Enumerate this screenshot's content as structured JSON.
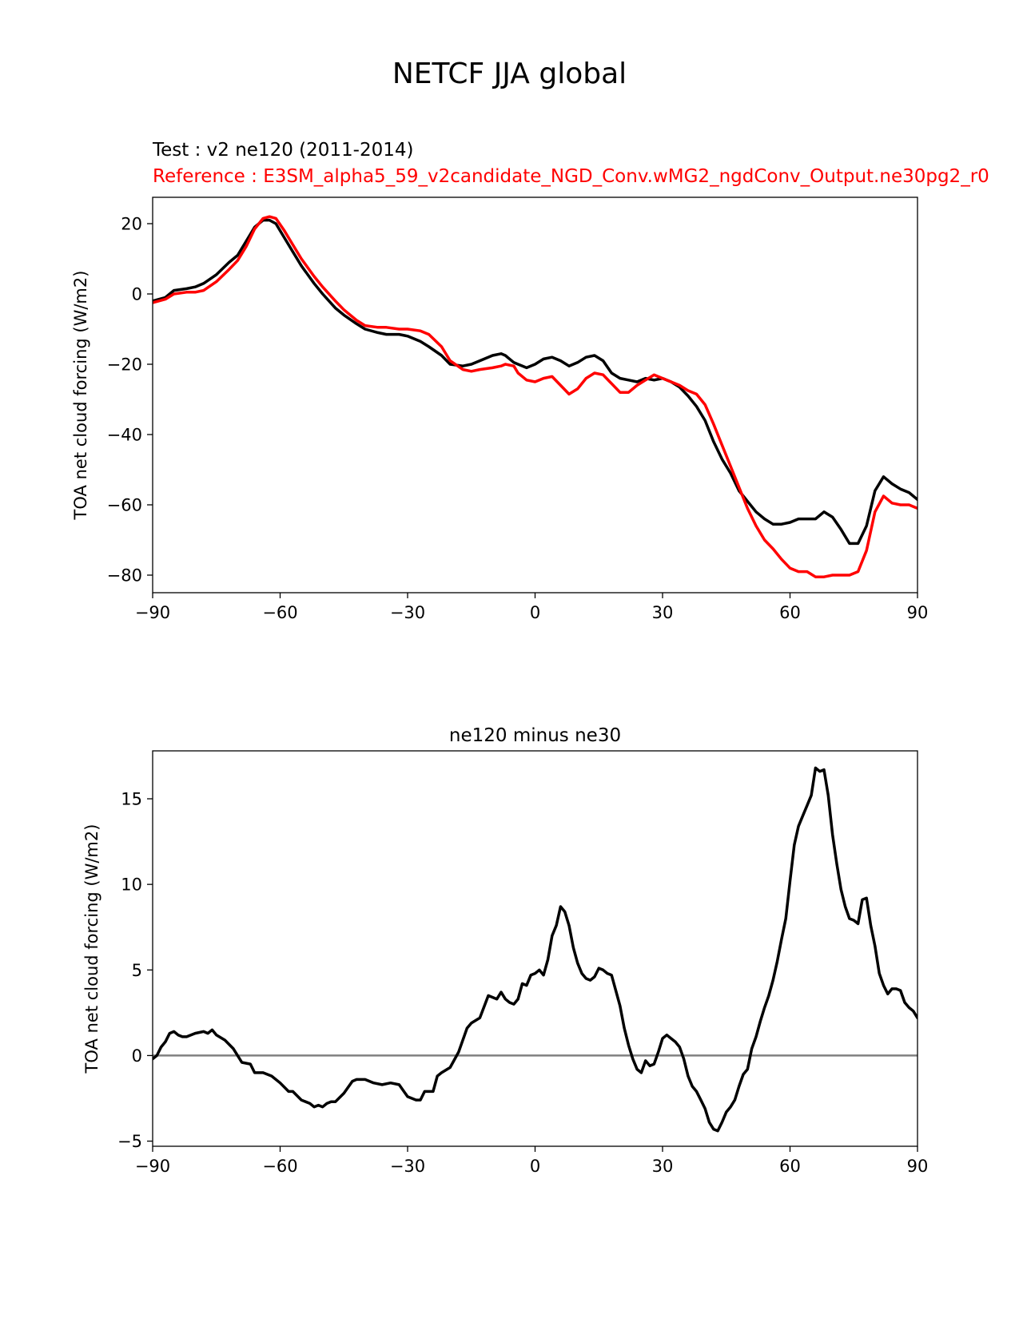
{
  "figure": {
    "suptitle": "NETCF JJA global",
    "test_title": "Test : v2 ne120 (2011-2014)",
    "reference_title": "Reference : E3SM_alpha5_59_v2candidate_NGD_Conv.wMG2_ngdConv_Output.ne30pg2_r0",
    "colors": {
      "test": "#000000",
      "reference": "#ff0000",
      "zero_line": "#808080"
    }
  },
  "chart_data": [
    {
      "type": "line",
      "title": "",
      "xlabel": "",
      "ylabel": "TOA net cloud forcing (W/m2)",
      "xlim": [
        -90,
        90
      ],
      "ylim": [
        -85,
        27.5
      ],
      "xticks": [
        -90,
        -60,
        -30,
        0,
        30,
        60,
        90
      ],
      "xtick_labels": [
        "−90",
        "−60",
        "−30",
        "0",
        "30",
        "60",
        "90"
      ],
      "yticks": [
        -80,
        -60,
        -40,
        -20,
        0,
        20
      ],
      "ytick_labels": [
        "−80",
        "−60",
        "−40",
        "−20",
        "0",
        "20"
      ],
      "x": [
        -90,
        -87,
        -85,
        -82,
        -80,
        -78,
        -75,
        -72,
        -70,
        -68,
        -66,
        -64,
        -62.5,
        -61,
        -59,
        -57,
        -55,
        -52,
        -50,
        -47,
        -45,
        -42,
        -40,
        -37,
        -35,
        -32,
        -30,
        -27,
        -25,
        -22,
        -20,
        -17,
        -15,
        -13,
        -10,
        -8,
        -7,
        -5,
        -4,
        -2,
        0,
        2,
        4,
        6,
        8,
        10,
        12,
        14,
        16,
        18,
        20,
        22,
        24,
        26,
        28,
        30,
        32,
        34,
        36,
        38,
        40,
        42,
        44,
        46,
        48,
        50,
        52,
        54,
        56,
        58,
        60,
        62,
        64,
        66,
        68,
        70,
        72,
        74,
        76,
        78,
        80,
        82,
        84,
        86,
        88,
        90
      ],
      "series": [
        {
          "name": "Test",
          "color": "#000000",
          "values": [
            -2,
            -1,
            1,
            1.5,
            2,
            3,
            5.5,
            9,
            11,
            15,
            19,
            21,
            21,
            20,
            16,
            12,
            8,
            3,
            0,
            -4,
            -6,
            -8.5,
            -10,
            -11,
            -11.5,
            -11.5,
            -12,
            -13.5,
            -15,
            -17.5,
            -20,
            -20.5,
            -20,
            -19,
            -17.5,
            -17,
            -17.5,
            -19.5,
            -20,
            -21,
            -20,
            -18.5,
            -18,
            -19,
            -20.5,
            -19.5,
            -18,
            -17.5,
            -19,
            -22.5,
            -24,
            -24.5,
            -25,
            -24,
            -24.5,
            -24,
            -25,
            -26.5,
            -29,
            -32,
            -36,
            -42,
            -47,
            -51,
            -56,
            -59,
            -62,
            -64,
            -65.5,
            -65.5,
            -65,
            -64,
            -64,
            -64,
            -62,
            -63.5,
            -67,
            -71,
            -71,
            -66,
            -56,
            -52,
            -54,
            -55.5,
            -56.5,
            -58.5
          ]
        },
        {
          "name": "Reference",
          "color": "#ff0000",
          "values": [
            -2.5,
            -1.5,
            0,
            0.5,
            0.5,
            1,
            3.5,
            7,
            9.5,
            13.5,
            18.5,
            21.5,
            22,
            21.5,
            18,
            14,
            10,
            5,
            2,
            -2,
            -4.5,
            -7.5,
            -9,
            -9.5,
            -9.5,
            -10,
            -10,
            -10.5,
            -11.5,
            -15,
            -19,
            -21.5,
            -22,
            -21.5,
            -21,
            -20.5,
            -20,
            -20.5,
            -22.5,
            -24.5,
            -25,
            -24,
            -23.5,
            -26,
            -28.5,
            -27,
            -24,
            -22.5,
            -23,
            -25.5,
            -28,
            -28,
            -26,
            -24.5,
            -23,
            -24,
            -25,
            -26,
            -27.5,
            -28.5,
            -31.5,
            -37,
            -43,
            -49,
            -55,
            -61,
            -66,
            -70,
            -72.5,
            -75.5,
            -78,
            -79,
            -79,
            -80.5,
            -80.5,
            -80,
            -80,
            -80,
            -79,
            -73,
            -62,
            -57.5,
            -59.5,
            -60,
            -60,
            -61
          ]
        }
      ]
    },
    {
      "type": "line",
      "title": "ne120 minus ne30",
      "xlabel": "",
      "ylabel": "TOA net cloud forcing (W/m2)",
      "xlim": [
        -90,
        90
      ],
      "ylim": [
        -5.3,
        17.8
      ],
      "xticks": [
        -90,
        -60,
        -30,
        0,
        30,
        60,
        90
      ],
      "xtick_labels": [
        "−90",
        "−60",
        "−30",
        "0",
        "30",
        "60",
        "90"
      ],
      "yticks": [
        -5,
        0,
        5,
        10,
        15
      ],
      "ytick_labels": [
        "−5",
        "0",
        "5",
        "10",
        "15"
      ],
      "zero_line": 0,
      "x": [
        -90,
        -89,
        -88,
        -87,
        -86,
        -85,
        -84,
        -83,
        -82,
        -80,
        -78,
        -77,
        -76,
        -75,
        -73,
        -71,
        -70,
        -69,
        -67,
        -66,
        -64,
        -62,
        -60,
        -58,
        -57,
        -55,
        -53,
        -52,
        -51,
        -50,
        -49,
        -48,
        -47,
        -45,
        -43,
        -42,
        -40,
        -38,
        -36,
        -34,
        -32,
        -30,
        -28,
        -27,
        -26,
        -25,
        -24,
        -23,
        -22,
        -20,
        -18,
        -16,
        -15,
        -13,
        -11,
        -9,
        -8,
        -7,
        -6,
        -5,
        -4,
        -3,
        -2,
        -1,
        0,
        1,
        2,
        3,
        4,
        5,
        6,
        7,
        8,
        9,
        10,
        11,
        12,
        13,
        14,
        15,
        16,
        17,
        18,
        19,
        20,
        21,
        22,
        23,
        24,
        25,
        26,
        27,
        28,
        29,
        30,
        31,
        32,
        33,
        34,
        35,
        36,
        37,
        38,
        39,
        40,
        41,
        42,
        43,
        44,
        45,
        46,
        47,
        48,
        49,
        50,
        51,
        52,
        53,
        54,
        55,
        56,
        57,
        58,
        59,
        60,
        61,
        62,
        63,
        64,
        65,
        66,
        67,
        68,
        69,
        70,
        71,
        72,
        73,
        74,
        75,
        76,
        77,
        78,
        79,
        80,
        81,
        82,
        83,
        84,
        85,
        86,
        87,
        88,
        89,
        90
      ],
      "series": [
        {
          "name": "ne120 minus ne30",
          "color": "#000000",
          "values": [
            -0.2,
            0,
            0.5,
            0.8,
            1.3,
            1.4,
            1.2,
            1.1,
            1.1,
            1.3,
            1.4,
            1.3,
            1.5,
            1.2,
            0.9,
            0.4,
            0,
            -0.4,
            -0.5,
            -1,
            -1,
            -1.2,
            -1.6,
            -2.1,
            -2.1,
            -2.6,
            -2.8,
            -3,
            -2.9,
            -3,
            -2.8,
            -2.7,
            -2.7,
            -2.2,
            -1.5,
            -1.4,
            -1.4,
            -1.6,
            -1.7,
            -1.6,
            -1.7,
            -2.4,
            -2.6,
            -2.6,
            -2.1,
            -2.1,
            -2.1,
            -1.2,
            -1,
            -0.7,
            0.2,
            1.6,
            1.9,
            2.2,
            3.5,
            3.3,
            3.7,
            3.3,
            3.1,
            3,
            3.3,
            4.2,
            4.1,
            4.7,
            4.8,
            5,
            4.7,
            5.6,
            7,
            7.6,
            8.7,
            8.4,
            7.6,
            6.3,
            5.4,
            4.8,
            4.5,
            4.4,
            4.6,
            5.1,
            5.0,
            4.8,
            4.7,
            3.8,
            2.9,
            1.6,
            0.6,
            -0.2,
            -0.8,
            -1,
            -0.3,
            -0.6,
            -0.5,
            0.2,
            1,
            1.2,
            1,
            0.8,
            0.5,
            -0.2,
            -1.2,
            -1.8,
            -2.1,
            -2.6,
            -3.1,
            -3.9,
            -4.3,
            -4.4,
            -3.9,
            -3.3,
            -3.0,
            -2.6,
            -1.8,
            -1.1,
            -0.8,
            0.4,
            1.1,
            2,
            2.8,
            3.5,
            4.4,
            5.5,
            6.8,
            8,
            10.2,
            12.3,
            13.4,
            14,
            14.6,
            15.2,
            16.8,
            16.6,
            16.7,
            15.2,
            12.9,
            11.2,
            9.7,
            8.7,
            8,
            7.9,
            7.7,
            9.1,
            9.2,
            7.6,
            6.4,
            4.8,
            4.1,
            3.6,
            3.9,
            3.9,
            3.8,
            3.1,
            2.8,
            2.6,
            2.2
          ]
        }
      ]
    }
  ]
}
